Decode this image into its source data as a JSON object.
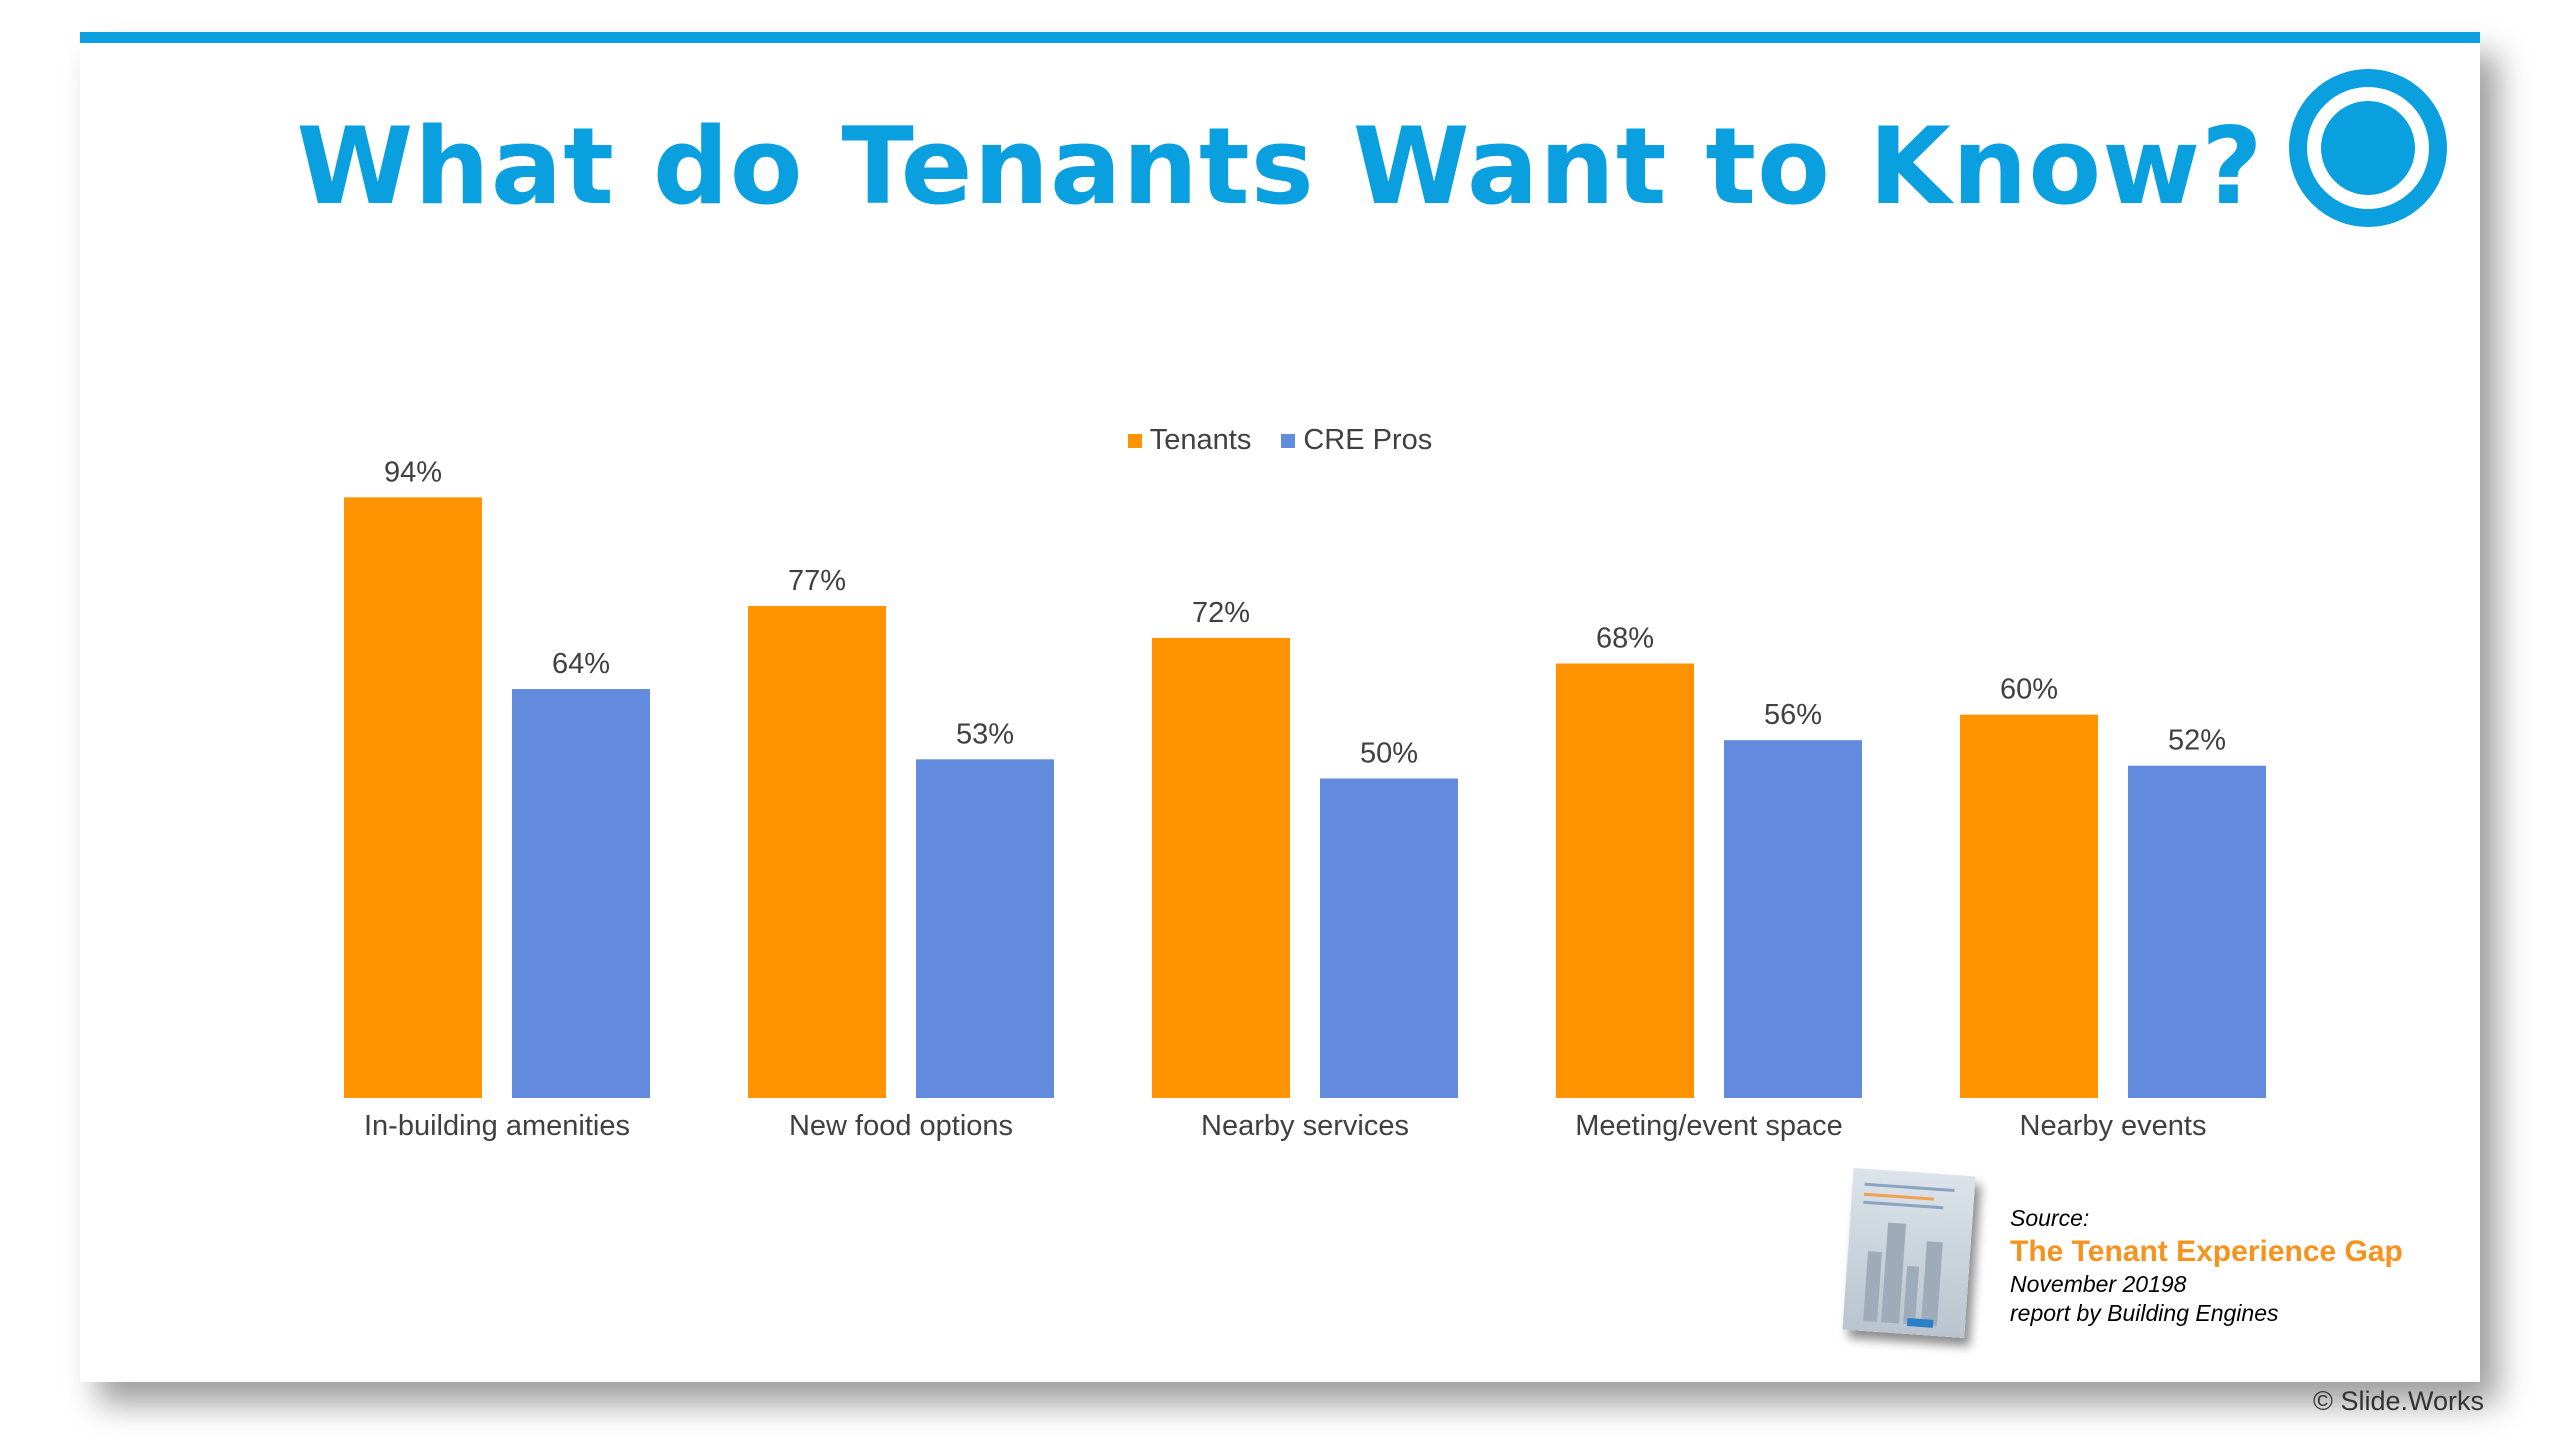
{
  "slide": {
    "title": "What do Tenants Want to Know?",
    "logo_icon": "target-circle-icon",
    "accent_color": "#0aa0e0"
  },
  "legend": [
    {
      "label": "Tenants",
      "color": "#ff9300"
    },
    {
      "label": "CRE Pros",
      "color": "#628bdd"
    }
  ],
  "chart_data": {
    "type": "bar",
    "categories": [
      "In-building amenities",
      "New food options",
      "Nearby services",
      "Meeting/event space",
      "Nearby events"
    ],
    "series": [
      {
        "name": "Tenants",
        "color": "#ff9300",
        "values": [
          94,
          77,
          72,
          68,
          60
        ],
        "labels": [
          "94%",
          "77%",
          "72%",
          "68%",
          "60%"
        ]
      },
      {
        "name": "CRE Pros",
        "color": "#628bdd",
        "values": [
          64,
          53,
          50,
          56,
          52
        ],
        "labels": [
          "64%",
          "53%",
          "50%",
          "56%",
          "52%"
        ]
      }
    ],
    "ylim": [
      0,
      100
    ],
    "grid": false,
    "legend_position": "top-center"
  },
  "source": {
    "label": "Source:",
    "title": "The Tenant Experience Gap",
    "date": "November 20198",
    "byline": "report by Building Engines",
    "cover_icon": "report-cover-icon"
  },
  "footer": {
    "copyright": "© Slide.Works"
  }
}
